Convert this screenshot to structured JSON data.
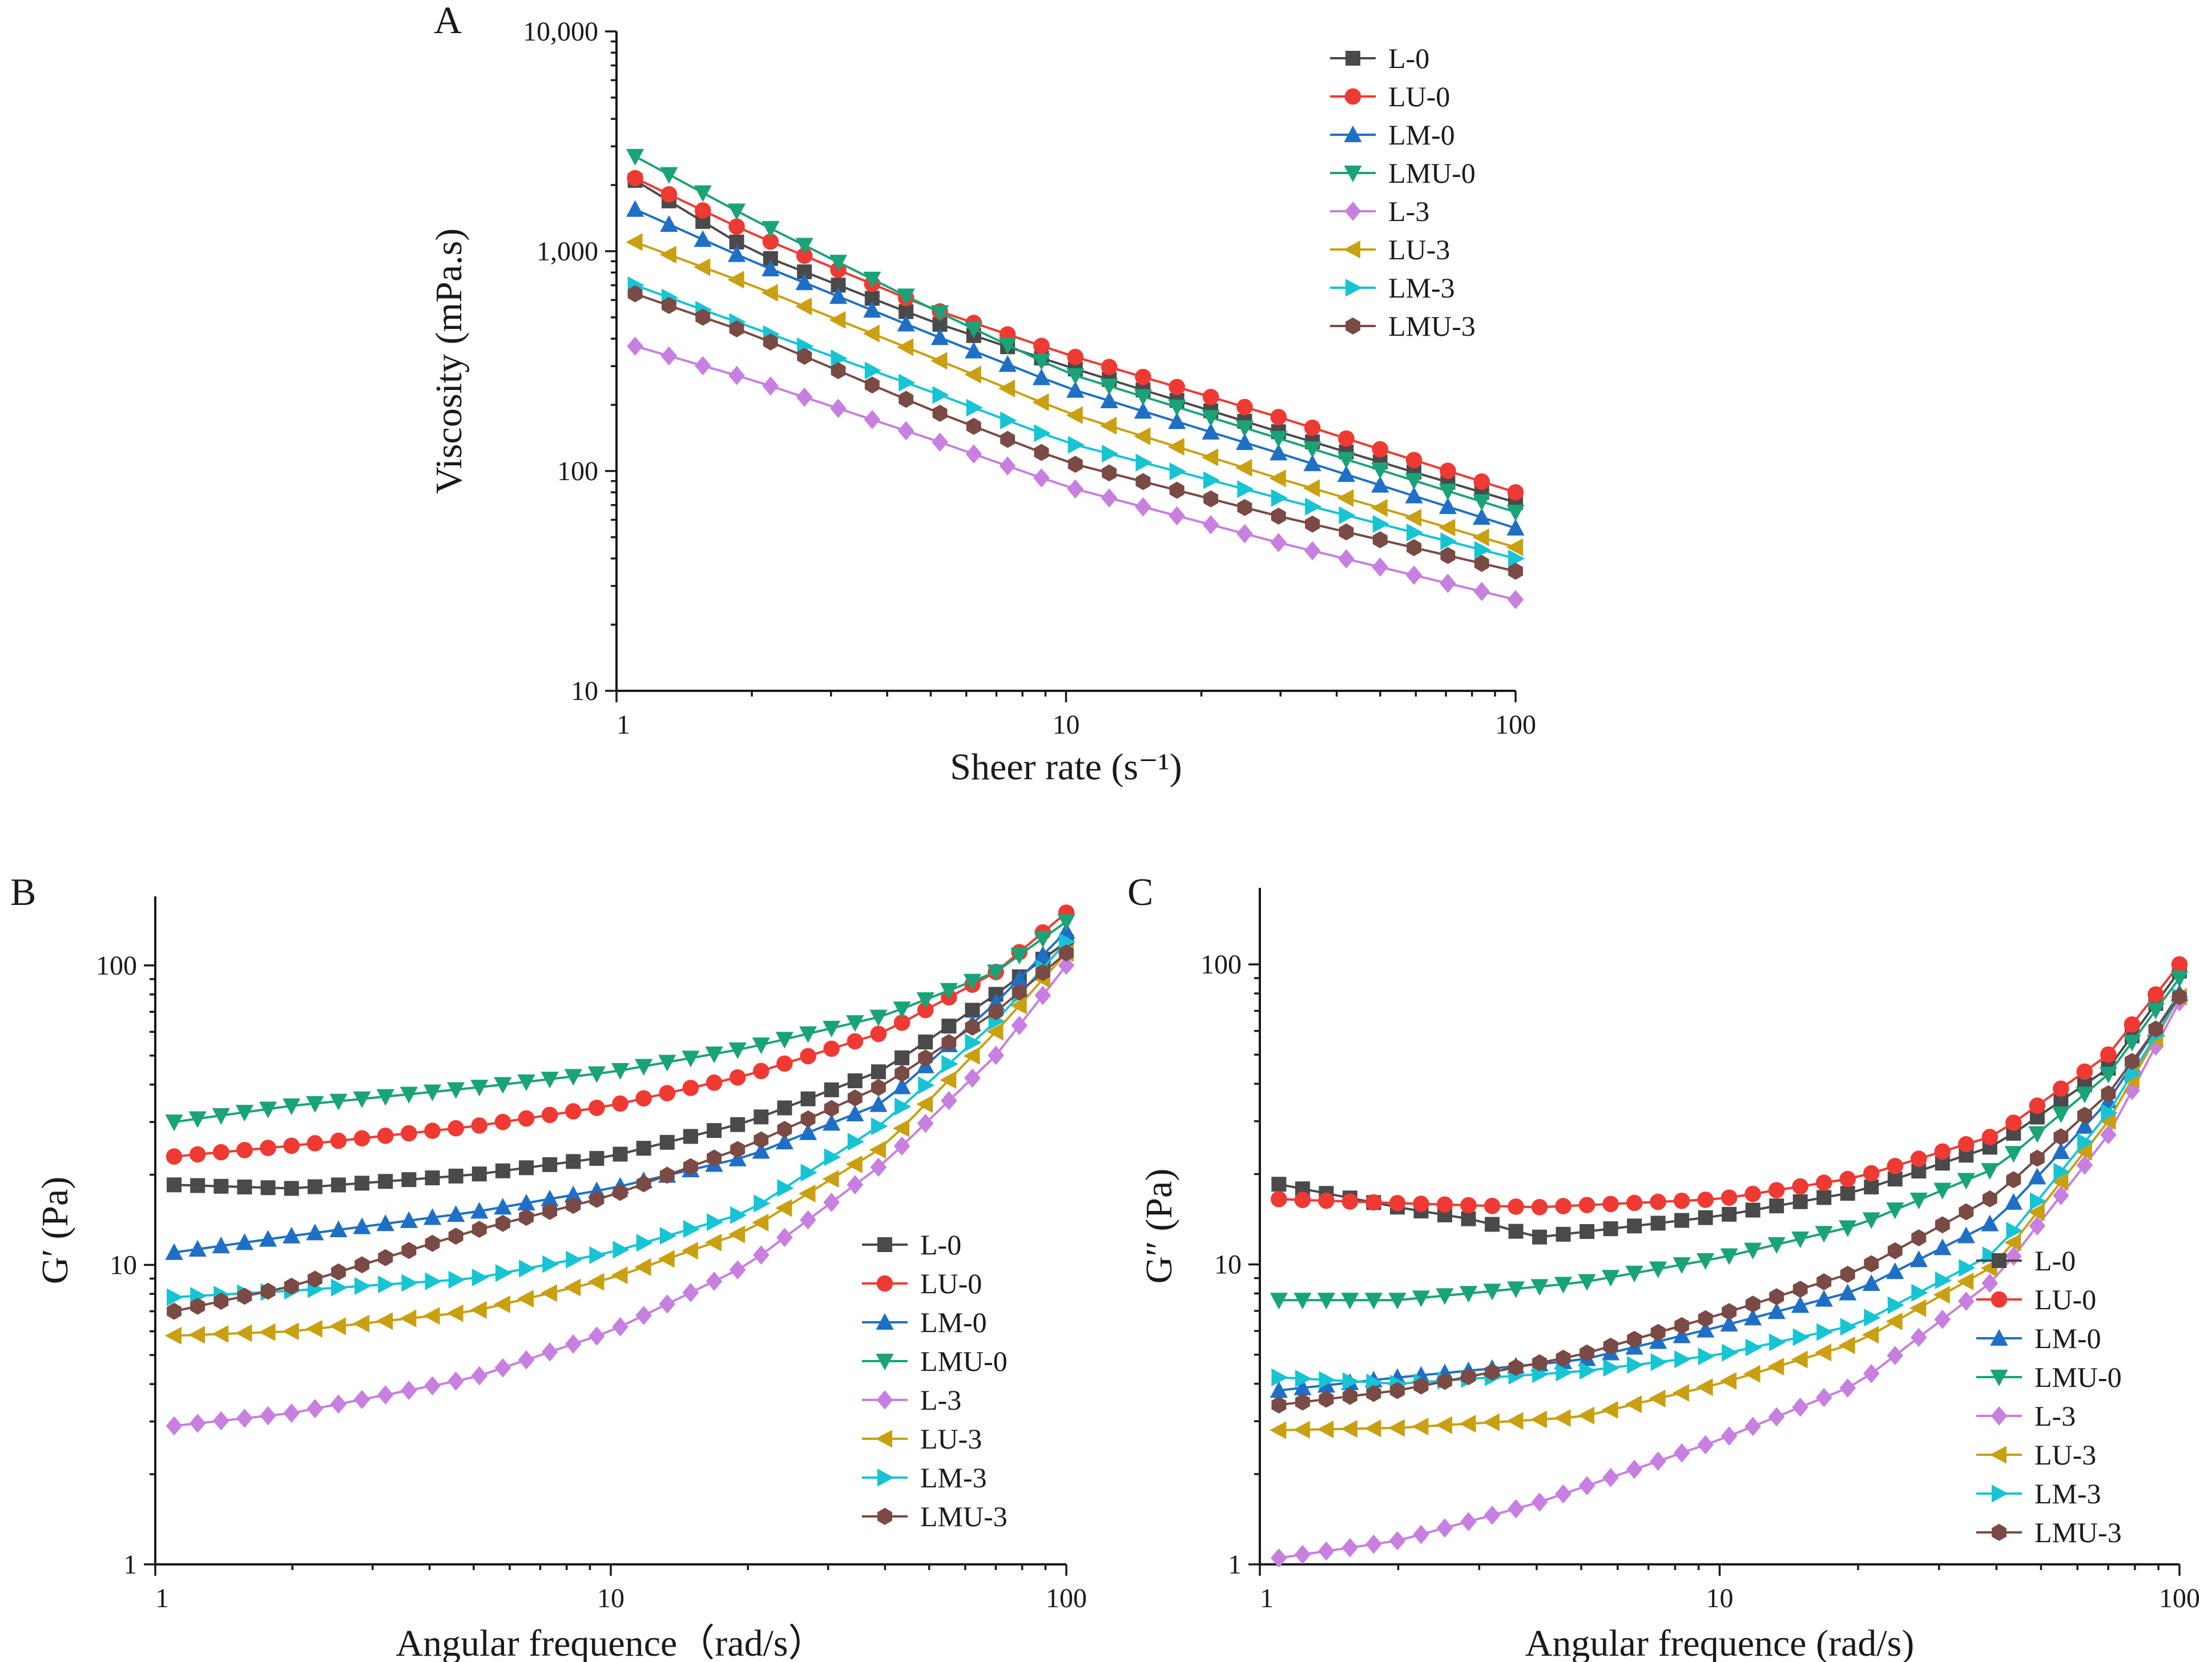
{
  "chart_data": [
    {
      "panel": "A",
      "type": "line",
      "title": "",
      "xlabel": "Sheer rate (s⁻¹)",
      "ylabel": "Viscosity (mPa.s)",
      "xscale": "log",
      "yscale": "log",
      "xlim": [
        1,
        100
      ],
      "ylim": [
        10,
        10000
      ],
      "x_ticks": [
        1,
        10,
        100
      ],
      "x_tick_labels": [
        "1",
        "10",
        "100"
      ],
      "y_ticks": [
        10,
        100,
        1000,
        10000
      ],
      "y_tick_labels": [
        "10",
        "100",
        "1,000",
        "10,000"
      ],
      "legend_position": "top-right",
      "series": [
        {
          "name": "L-0",
          "start_x": 1.1,
          "end_x": 100,
          "n": 27,
          "anchors": [
            [
              1.1,
              2100
            ],
            [
              2,
              1000
            ],
            [
              5,
              480
            ],
            [
              10,
              300
            ],
            [
              30,
              150
            ],
            [
              100,
              72
            ]
          ]
        },
        {
          "name": "LU-0",
          "start_x": 1.1,
          "end_x": 100,
          "n": 27,
          "anchors": [
            [
              1.1,
              2150
            ],
            [
              2,
              1200
            ],
            [
              5,
              550
            ],
            [
              10,
              340
            ],
            [
              30,
              175
            ],
            [
              100,
              80
            ]
          ]
        },
        {
          "name": "LM-0",
          "start_x": 1.1,
          "end_x": 100,
          "n": 27,
          "anchors": [
            [
              1.1,
              1550
            ],
            [
              2,
              900
            ],
            [
              5,
              420
            ],
            [
              10,
              240
            ],
            [
              30,
              120
            ],
            [
              100,
              55
            ]
          ]
        },
        {
          "name": "LMU-0",
          "start_x": 1.1,
          "end_x": 100,
          "n": 27,
          "anchors": [
            [
              1.1,
              2700
            ],
            [
              2,
              1400
            ],
            [
              5,
              550
            ],
            [
              10,
              280
            ],
            [
              30,
              140
            ],
            [
              100,
              65
            ]
          ]
        },
        {
          "name": "L-3",
          "start_x": 1.1,
          "end_x": 100,
          "n": 27,
          "anchors": [
            [
              1.1,
              370
            ],
            [
              2,
              260
            ],
            [
              5,
              140
            ],
            [
              10,
              85
            ],
            [
              30,
              47
            ],
            [
              100,
              26
            ]
          ]
        },
        {
          "name": "LU-3",
          "start_x": 1.1,
          "end_x": 100,
          "n": 27,
          "anchors": [
            [
              1.1,
              1100
            ],
            [
              2,
              700
            ],
            [
              5,
              330
            ],
            [
              10,
              185
            ],
            [
              30,
              92
            ],
            [
              100,
              45
            ]
          ]
        },
        {
          "name": "LM-3",
          "start_x": 1.1,
          "end_x": 100,
          "n": 27,
          "anchors": [
            [
              1.1,
              700
            ],
            [
              2,
              450
            ],
            [
              5,
              230
            ],
            [
              10,
              135
            ],
            [
              30,
              75
            ],
            [
              100,
              40
            ]
          ]
        },
        {
          "name": "LMU-3",
          "start_x": 1.1,
          "end_x": 100,
          "n": 27,
          "anchors": [
            [
              1.1,
              640
            ],
            [
              2,
              420
            ],
            [
              5,
              190
            ],
            [
              10,
              110
            ],
            [
              30,
              62
            ],
            [
              100,
              35
            ]
          ]
        }
      ]
    },
    {
      "panel": "B",
      "type": "line",
      "title": "",
      "xlabel": "Angular frequence（rad/s）",
      "ylabel": "G′ (Pa)",
      "xscale": "log",
      "yscale": "log",
      "xlim": [
        1,
        100
      ],
      "ylim": [
        1,
        170
      ],
      "x_ticks": [
        1,
        10,
        100
      ],
      "x_tick_labels": [
        "1",
        "10",
        "100"
      ],
      "y_ticks": [
        1,
        10,
        100
      ],
      "y_tick_labels": [
        "1",
        "10",
        "100"
      ],
      "legend_position": "center-right",
      "series": [
        {
          "name": "L-0",
          "start_x": 1.1,
          "end_x": 100,
          "n": 39,
          "anchors": [
            [
              1.1,
              18.5
            ],
            [
              2,
              18
            ],
            [
              5,
              20
            ],
            [
              10,
              23
            ],
            [
              20,
              30
            ],
            [
              40,
              45
            ],
            [
              70,
              80
            ],
            [
              100,
              120
            ]
          ]
        },
        {
          "name": "LU-0",
          "start_x": 1.1,
          "end_x": 100,
          "n": 39,
          "anchors": [
            [
              1.1,
              23
            ],
            [
              2,
              25
            ],
            [
              5,
              29
            ],
            [
              10,
              34
            ],
            [
              20,
              43
            ],
            [
              40,
              60
            ],
            [
              70,
              95
            ],
            [
              100,
              150
            ]
          ]
        },
        {
          "name": "LM-0",
          "start_x": 1.1,
          "end_x": 100,
          "n": 39,
          "anchors": [
            [
              1.1,
              11
            ],
            [
              2,
              12.5
            ],
            [
              5,
              15
            ],
            [
              10,
              18
            ],
            [
              20,
              23
            ],
            [
              40,
              35
            ],
            [
              70,
              75
            ],
            [
              100,
              130
            ]
          ]
        },
        {
          "name": "LMU-0",
          "start_x": 1.1,
          "end_x": 100,
          "n": 39,
          "anchors": [
            [
              1.1,
              30
            ],
            [
              2,
              34
            ],
            [
              5,
              39
            ],
            [
              10,
              44
            ],
            [
              20,
              53
            ],
            [
              40,
              68
            ],
            [
              70,
              95
            ],
            [
              100,
              140
            ]
          ]
        },
        {
          "name": "L-3",
          "start_x": 1.1,
          "end_x": 100,
          "n": 39,
          "anchors": [
            [
              1.1,
              2.9
            ],
            [
              2,
              3.2
            ],
            [
              5,
              4.2
            ],
            [
              10,
              6
            ],
            [
              20,
              10
            ],
            [
              40,
              22
            ],
            [
              70,
              50
            ],
            [
              100,
              100
            ]
          ]
        },
        {
          "name": "LU-3",
          "start_x": 1.1,
          "end_x": 100,
          "n": 39,
          "anchors": [
            [
              1.1,
              5.8
            ],
            [
              2,
              6
            ],
            [
              5,
              7
            ],
            [
              10,
              9
            ],
            [
              20,
              13
            ],
            [
              40,
              25
            ],
            [
              70,
              60
            ],
            [
              100,
              110
            ]
          ]
        },
        {
          "name": "LM-3",
          "start_x": 1.1,
          "end_x": 100,
          "n": 39,
          "anchors": [
            [
              1.1,
              7.8
            ],
            [
              2,
              8.2
            ],
            [
              5,
              9
            ],
            [
              10,
              11
            ],
            [
              20,
              15
            ],
            [
              40,
              30
            ],
            [
              70,
              65
            ],
            [
              100,
              120
            ]
          ]
        },
        {
          "name": "LMU-3",
          "start_x": 1.1,
          "end_x": 100,
          "n": 39,
          "anchors": [
            [
              1.1,
              7
            ],
            [
              2,
              8.5
            ],
            [
              5,
              13
            ],
            [
              10,
              17
            ],
            [
              20,
              25
            ],
            [
              40,
              40
            ],
            [
              70,
              70
            ],
            [
              100,
              110
            ]
          ]
        }
      ]
    },
    {
      "panel": "C",
      "type": "line",
      "title": "",
      "xlabel": "Angular frequence  (rad/s)",
      "ylabel": "G″ (Pa)",
      "xscale": "log",
      "yscale": "log",
      "xlim": [
        1,
        100
      ],
      "ylim": [
        1,
        180
      ],
      "x_ticks": [
        1,
        10,
        100
      ],
      "x_tick_labels": [
        "1",
        "10",
        "100"
      ],
      "y_ticks": [
        1,
        10,
        100
      ],
      "y_tick_labels": [
        "1",
        "10",
        "100"
      ],
      "legend_position": "center-right",
      "series": [
        {
          "name": "L-0",
          "start_x": 1.1,
          "end_x": 100,
          "n": 39,
          "anchors": [
            [
              1.1,
              18.5
            ],
            [
              2,
              15.5
            ],
            [
              3,
              14
            ],
            [
              4,
              12.3
            ],
            [
              10,
              14.5
            ],
            [
              20,
              17.5
            ],
            [
              40,
              25
            ],
            [
              70,
              45
            ],
            [
              100,
              95
            ]
          ]
        },
        {
          "name": "LU-0",
          "start_x": 1.1,
          "end_x": 100,
          "n": 39,
          "anchors": [
            [
              1.1,
              16.5
            ],
            [
              2,
              16
            ],
            [
              4,
              15.5
            ],
            [
              10,
              16.5
            ],
            [
              20,
              19.5
            ],
            [
              40,
              27
            ],
            [
              70,
              50
            ],
            [
              100,
              100
            ]
          ]
        },
        {
          "name": "LM-0",
          "start_x": 1.1,
          "end_x": 100,
          "n": 39,
          "anchors": [
            [
              1.1,
              3.8
            ],
            [
              2,
              4.2
            ],
            [
              5,
              4.8
            ],
            [
              10,
              6.2
            ],
            [
              20,
              8.2
            ],
            [
              40,
              14
            ],
            [
              70,
              35
            ],
            [
              100,
              80
            ]
          ]
        },
        {
          "name": "LMU-0",
          "start_x": 1.1,
          "end_x": 100,
          "n": 39,
          "anchors": [
            [
              1.1,
              7.6
            ],
            [
              2,
              7.6
            ],
            [
              5,
              8.7
            ],
            [
              10,
              10.5
            ],
            [
              20,
              13.5
            ],
            [
              40,
              21
            ],
            [
              70,
              43
            ],
            [
              100,
              90
            ]
          ]
        },
        {
          "name": "L-3",
          "start_x": 1.1,
          "end_x": 100,
          "n": 39,
          "anchors": [
            [
              1.1,
              1.05
            ],
            [
              2,
              1.2
            ],
            [
              4,
              1.6
            ],
            [
              10,
              2.6
            ],
            [
              20,
              4
            ],
            [
              40,
              9
            ],
            [
              70,
              27
            ],
            [
              100,
              75
            ]
          ]
        },
        {
          "name": "LU-3",
          "start_x": 1.1,
          "end_x": 100,
          "n": 39,
          "anchors": [
            [
              1.1,
              2.8
            ],
            [
              2,
              2.85
            ],
            [
              5,
              3.1
            ],
            [
              10,
              4
            ],
            [
              20,
              5.5
            ],
            [
              40,
              10
            ],
            [
              70,
              30
            ],
            [
              100,
              78
            ]
          ]
        },
        {
          "name": "LM-3",
          "start_x": 1.1,
          "end_x": 100,
          "n": 39,
          "anchors": [
            [
              1.1,
              4.2
            ],
            [
              2,
              4
            ],
            [
              5,
              4.4
            ],
            [
              10,
              5
            ],
            [
              20,
              6.3
            ],
            [
              40,
              11
            ],
            [
              70,
              32
            ],
            [
              100,
              78
            ]
          ]
        },
        {
          "name": "LMU-3",
          "start_x": 1.1,
          "end_x": 100,
          "n": 39,
          "anchors": [
            [
              1.1,
              3.4
            ],
            [
              2,
              3.8
            ],
            [
              5,
              5
            ],
            [
              10,
              6.8
            ],
            [
              20,
              9.5
            ],
            [
              40,
              17
            ],
            [
              70,
              37
            ],
            [
              100,
              78
            ]
          ]
        }
      ]
    }
  ],
  "legend": [
    {
      "name": "L-0",
      "color": "#4a4a4a",
      "marker": "square"
    },
    {
      "name": "LU-0",
      "color": "#ee3a33",
      "marker": "circle"
    },
    {
      "name": "LM-0",
      "color": "#1f6fc6",
      "marker": "triangle-up"
    },
    {
      "name": "LMU-0",
      "color": "#1aa378",
      "marker": "triangle-down"
    },
    {
      "name": "L-3",
      "color": "#c77fe0",
      "marker": "diamond"
    },
    {
      "name": "LU-3",
      "color": "#c9a011",
      "marker": "triangle-left"
    },
    {
      "name": "LM-3",
      "color": "#16c4d4",
      "marker": "triangle-right"
    },
    {
      "name": "LMU-3",
      "color": "#7a4a44",
      "marker": "hexagon"
    }
  ]
}
